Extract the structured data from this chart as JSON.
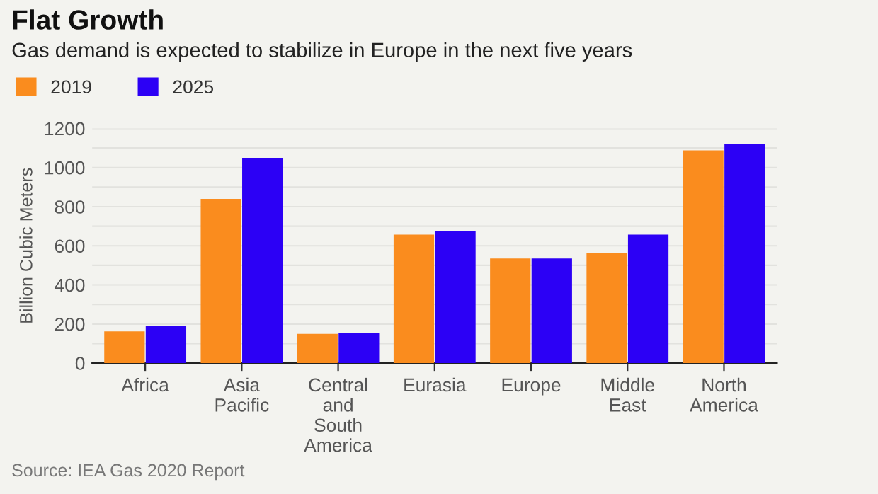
{
  "chart_data": {
    "type": "bar",
    "title": "Flat Growth",
    "subtitle": "Gas demand is expected to stabilize in Europe in the next five years",
    "ylabel": "Billion Cubic Meters",
    "categories": [
      "Africa",
      "Asia\nPacific",
      "Central\nand\nSouth\nAmerica",
      "Eurasia",
      "Europe",
      "Middle\nEast",
      "North\nAmerica"
    ],
    "series": [
      {
        "name": "2019",
        "color": "#fa8c1e",
        "values": [
          162,
          840,
          149,
          657,
          535,
          561,
          1088
        ]
      },
      {
        "name": "2025",
        "color": "#2c00f5",
        "values": [
          192,
          1050,
          154,
          674,
          535,
          657,
          1119
        ]
      }
    ],
    "ylim": [
      0,
      1200
    ],
    "yticks": [
      0,
      {
        "value": 100,
        "label": null
      },
      200,
      {
        "value": 300,
        "label": null
      },
      400,
      {
        "value": 500,
        "label": null
      },
      600,
      {
        "value": 700,
        "label": null
      },
      800,
      {
        "value": 900,
        "label": null
      },
      1000,
      {
        "value": 1100,
        "label": null
      },
      1200
    ],
    "grid": "y",
    "legend": "top left",
    "annotations": [
      "Source: IEA Gas 2020 Report"
    ]
  }
}
